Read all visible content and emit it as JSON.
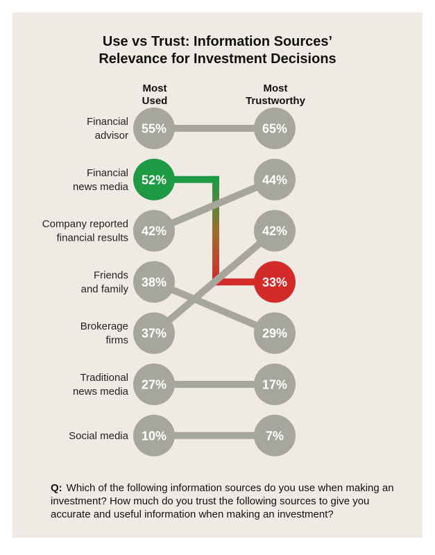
{
  "title": {
    "line1": "Use vs Trust: Information Sources’",
    "line2": "Relevance for Investment Decisions"
  },
  "columns": {
    "used": {
      "line1": "Most",
      "line2": "Used"
    },
    "trust": {
      "line1": "Most",
      "line2": "Trustworthy"
    }
  },
  "colors": {
    "background": "#efebe4",
    "neutral": "#a6a69d",
    "highlight_used": "#1e9a45",
    "highlight_trust": "#d32a2a"
  },
  "chart_data": {
    "type": "slope",
    "series": [
      {
        "name": "Most Used",
        "unit": "%"
      },
      {
        "name": "Most Trustworthy",
        "unit": "%"
      }
    ],
    "categories": [
      {
        "label_lines": [
          "Financial",
          "advisor"
        ],
        "used": 55,
        "trust": 65,
        "highlight": false
      },
      {
        "label_lines": [
          "Financial",
          "news media"
        ],
        "used": 52,
        "trust": 33,
        "highlight": true
      },
      {
        "label_lines": [
          "Company reported",
          "financial results"
        ],
        "used": 42,
        "trust": 44,
        "highlight": false
      },
      {
        "label_lines": [
          "Friends",
          "and family"
        ],
        "used": 38,
        "trust": 29,
        "highlight": false
      },
      {
        "label_lines": [
          "Brokerage",
          "firms"
        ],
        "used": 37,
        "trust": 42,
        "highlight": false
      },
      {
        "label_lines": [
          "Traditional",
          "news media"
        ],
        "used": 27,
        "trust": 17,
        "highlight": false
      },
      {
        "label_lines": [
          "Social media"
        ],
        "used": 10,
        "trust": 7,
        "highlight": false
      }
    ]
  },
  "question": {
    "prefix": "Q:",
    "text": "Which of the following information sources do you use when making an investment? How much do you trust the following sources to give you accurate and useful information when making an investment?"
  }
}
